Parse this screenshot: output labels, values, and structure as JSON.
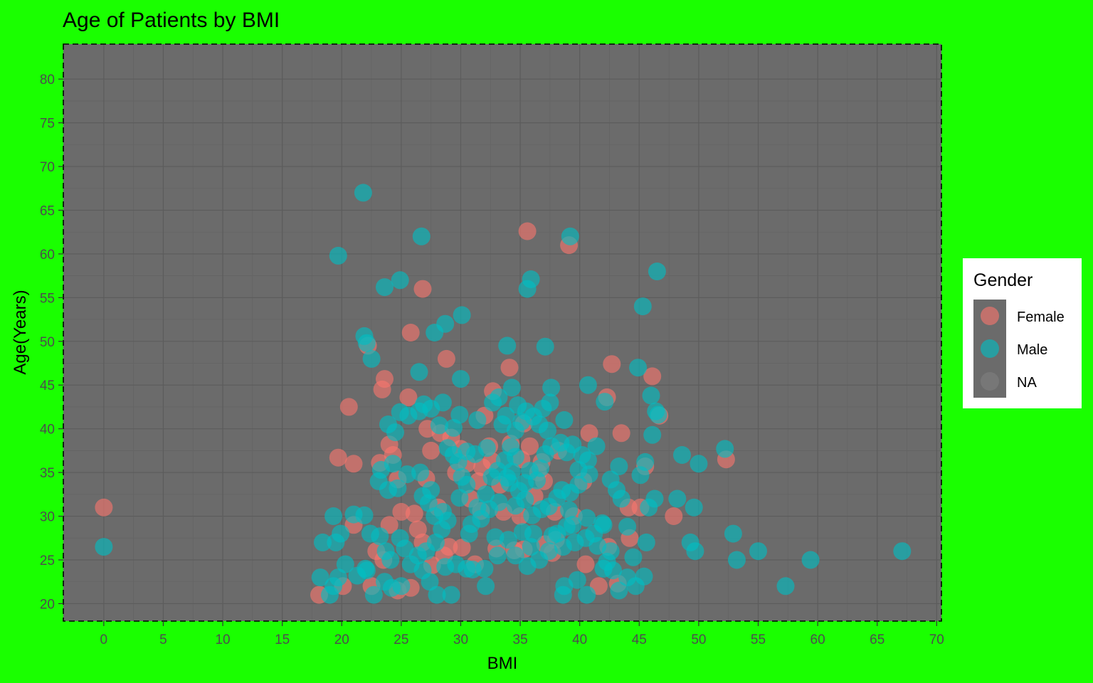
{
  "chart_data": {
    "type": "scatter",
    "title": "Age of Patients by BMI",
    "xlabel": "BMI",
    "ylabel": "Age(Years)",
    "xlim": [
      -3.4,
      70.4
    ],
    "ylim": [
      18,
      84
    ],
    "x_ticks": [
      0,
      5,
      10,
      15,
      20,
      25,
      30,
      35,
      40,
      45,
      50,
      55,
      60,
      65,
      70
    ],
    "y_ticks": [
      20,
      25,
      30,
      35,
      40,
      45,
      50,
      55,
      60,
      65,
      70,
      75,
      80
    ],
    "grid": true,
    "legend": {
      "title": "Gender",
      "position": "right",
      "entries": [
        "Female",
        "Male",
        "NA"
      ]
    },
    "colors": {
      "Female": "#f8766d",
      "Male": "#00bfc4",
      "NA": "#7f7f7f",
      "panel_background": "#6b6b6b",
      "plot_background": "#1aff00"
    },
    "series": [
      {
        "name": "Female",
        "points": [
          [
            0,
            31
          ],
          [
            35.6,
            62.6
          ],
          [
            39.1,
            61
          ],
          [
            26.8,
            56
          ],
          [
            25.8,
            51
          ],
          [
            28.8,
            48
          ],
          [
            34.1,
            47
          ],
          [
            42.7,
            47.4
          ],
          [
            46.1,
            46
          ],
          [
            23.6,
            45.7
          ],
          [
            23.4,
            44.5
          ],
          [
            25.6,
            43.6
          ],
          [
            32.7,
            44.3
          ],
          [
            42.3,
            43.6
          ],
          [
            20.6,
            42.5
          ],
          [
            22.2,
            49.5
          ],
          [
            43.5,
            39.5
          ],
          [
            40.8,
            39.5
          ],
          [
            45.5,
            35.7
          ],
          [
            46.7,
            41.5
          ],
          [
            52.3,
            36.5
          ],
          [
            19.7,
            36.7
          ],
          [
            21,
            36
          ],
          [
            44.1,
            31
          ],
          [
            47.9,
            30
          ],
          [
            37,
            34
          ],
          [
            36.5,
            35
          ],
          [
            35.1,
            36.5
          ],
          [
            35.8,
            38
          ],
          [
            32.4,
            38
          ],
          [
            31.5,
            34
          ],
          [
            30.5,
            36
          ],
          [
            29.2,
            39
          ],
          [
            27.5,
            37.5
          ],
          [
            27.1,
            34.3
          ],
          [
            26.1,
            30.3
          ],
          [
            25,
            30.5
          ],
          [
            23.2,
            36.1
          ],
          [
            24.3,
            37
          ],
          [
            22.9,
            26
          ],
          [
            23.5,
            25
          ],
          [
            24.7,
            21.5
          ],
          [
            25.8,
            21.8
          ],
          [
            27.6,
            24.4
          ],
          [
            29,
            26.5
          ],
          [
            30.1,
            26.4
          ],
          [
            31.2,
            24.5
          ],
          [
            33,
            26.3
          ],
          [
            34.5,
            26.1
          ],
          [
            35.3,
            26.2
          ],
          [
            37.1,
            26.8
          ],
          [
            38,
            27.3
          ],
          [
            40.5,
            24.5
          ],
          [
            41.6,
            22
          ],
          [
            43.2,
            22.3
          ],
          [
            44.2,
            27.5
          ],
          [
            28.6,
            25.5
          ],
          [
            26.4,
            28.5
          ],
          [
            24,
            29
          ],
          [
            21,
            29
          ],
          [
            20.1,
            22
          ],
          [
            18.1,
            21
          ],
          [
            22.5,
            22
          ],
          [
            28.1,
            31
          ],
          [
            31.7,
            30.6
          ],
          [
            33.6,
            30.5
          ],
          [
            35,
            30
          ],
          [
            36.2,
            32.3
          ],
          [
            37.9,
            30.5
          ],
          [
            39.5,
            30
          ],
          [
            40.3,
            34
          ],
          [
            38.2,
            37.5
          ],
          [
            34.2,
            38.3
          ],
          [
            31.8,
            35.6
          ],
          [
            29.6,
            35
          ],
          [
            27.2,
            40
          ],
          [
            24,
            38.2
          ],
          [
            30.8,
            32
          ],
          [
            33.3,
            33.6
          ],
          [
            36.8,
            36.2
          ],
          [
            35.3,
            40.6
          ],
          [
            32,
            41.5
          ],
          [
            28.3,
            39.5
          ],
          [
            24.7,
            34.2
          ],
          [
            26.8,
            27
          ],
          [
            37.7,
            25.8
          ],
          [
            42.4,
            26.5
          ],
          [
            45.1,
            31
          ],
          [
            30,
            37.7
          ],
          [
            32.6,
            36.3
          ]
        ]
      },
      {
        "name": "Male",
        "points": [
          [
            0,
            26.5
          ],
          [
            21.8,
            67
          ],
          [
            26.7,
            62
          ],
          [
            39.2,
            62
          ],
          [
            19.7,
            59.8
          ],
          [
            46.5,
            58
          ],
          [
            35.9,
            57.1
          ],
          [
            35.6,
            56
          ],
          [
            24.9,
            57
          ],
          [
            23.6,
            56.2
          ],
          [
            45.3,
            54
          ],
          [
            30.1,
            53
          ],
          [
            28.7,
            52
          ],
          [
            27.8,
            51
          ],
          [
            21.9,
            50.6
          ],
          [
            22.1,
            49.8
          ],
          [
            22.5,
            48
          ],
          [
            33.9,
            49.5
          ],
          [
            37.1,
            49.4
          ],
          [
            26.5,
            46.5
          ],
          [
            30,
            45.7
          ],
          [
            44.9,
            47
          ],
          [
            34.3,
            44.7
          ],
          [
            37.6,
            44.7
          ],
          [
            40.7,
            45
          ],
          [
            42.1,
            43.1
          ],
          [
            46,
            43.8
          ],
          [
            46.4,
            42
          ],
          [
            46.6,
            41.6
          ],
          [
            46.1,
            39.3
          ],
          [
            52.2,
            37.7
          ],
          [
            48.6,
            37
          ],
          [
            50,
            36
          ],
          [
            45.5,
            36.2
          ],
          [
            45.1,
            34.7
          ],
          [
            46.3,
            32
          ],
          [
            45.8,
            31
          ],
          [
            48.2,
            32
          ],
          [
            49.6,
            31
          ],
          [
            49.3,
            27
          ],
          [
            49.7,
            26
          ],
          [
            52.9,
            28
          ],
          [
            53.2,
            25
          ],
          [
            55,
            26
          ],
          [
            57.3,
            22
          ],
          [
            59.4,
            25
          ],
          [
            67.1,
            26
          ],
          [
            43.3,
            35.7
          ],
          [
            42.6,
            34.2
          ],
          [
            43.1,
            33
          ],
          [
            43.5,
            32
          ],
          [
            44,
            28.8
          ],
          [
            42,
            29
          ],
          [
            41.2,
            28
          ],
          [
            40.5,
            27.5
          ],
          [
            39.4,
            29
          ],
          [
            38.6,
            26.5
          ],
          [
            39.6,
            27
          ],
          [
            42.3,
            24.8
          ],
          [
            42,
            24
          ],
          [
            42.8,
            23.8
          ],
          [
            43.3,
            21.5
          ],
          [
            44,
            23
          ],
          [
            44.7,
            22
          ],
          [
            45.4,
            23.1
          ],
          [
            44.5,
            25.3
          ],
          [
            45.6,
            27
          ],
          [
            38.7,
            22
          ],
          [
            38.6,
            21
          ],
          [
            39.8,
            22.7
          ],
          [
            40.6,
            21
          ],
          [
            36.6,
            25
          ],
          [
            35.6,
            24.3
          ],
          [
            35.9,
            26.5
          ],
          [
            37.4,
            26
          ],
          [
            38.1,
            28
          ],
          [
            36.1,
            28
          ],
          [
            34.6,
            25.5
          ],
          [
            33.1,
            25.5
          ],
          [
            32,
            24
          ],
          [
            32.1,
            22
          ],
          [
            30.5,
            24
          ],
          [
            31,
            23.9
          ],
          [
            30.7,
            28
          ],
          [
            29.6,
            24.5
          ],
          [
            28,
            21
          ],
          [
            29.2,
            21
          ],
          [
            28.7,
            24.2
          ],
          [
            27.4,
            22.5
          ],
          [
            26.8,
            23.8
          ],
          [
            25.8,
            24.5
          ],
          [
            25,
            22
          ],
          [
            24.2,
            21.8
          ],
          [
            23.6,
            22.5
          ],
          [
            22.7,
            21
          ],
          [
            22.1,
            23.8
          ],
          [
            22,
            24
          ],
          [
            21.3,
            23.2
          ],
          [
            20.3,
            24.5
          ],
          [
            19.7,
            23
          ],
          [
            19.3,
            22
          ],
          [
            19,
            21
          ],
          [
            18.2,
            23
          ],
          [
            18.4,
            27
          ],
          [
            19.5,
            27
          ],
          [
            19.9,
            28
          ],
          [
            19.3,
            30
          ],
          [
            21,
            30.2
          ],
          [
            21.9,
            30.1
          ],
          [
            22.4,
            28
          ],
          [
            23.2,
            27.7
          ],
          [
            23.7,
            26
          ],
          [
            24.1,
            25
          ],
          [
            24.9,
            27.5
          ],
          [
            25.3,
            26.3
          ],
          [
            26.4,
            25.5
          ],
          [
            27.1,
            26
          ],
          [
            27.9,
            27
          ],
          [
            28.4,
            28.5
          ],
          [
            28.9,
            29.5
          ],
          [
            28.5,
            30.5
          ],
          [
            27.8,
            30
          ],
          [
            27.3,
            31.5
          ],
          [
            26.8,
            32.3
          ],
          [
            27.5,
            33
          ],
          [
            26.6,
            35
          ],
          [
            25.5,
            34.8
          ],
          [
            24.7,
            33.2
          ],
          [
            23.9,
            33
          ],
          [
            23.1,
            34
          ],
          [
            23.3,
            35.3
          ],
          [
            24.3,
            36
          ],
          [
            24.5,
            39.6
          ],
          [
            23.9,
            40.5
          ],
          [
            24.9,
            41.9
          ],
          [
            25.6,
            41.5
          ],
          [
            26.5,
            42
          ],
          [
            26.9,
            42.8
          ],
          [
            27.5,
            42.3
          ],
          [
            28.5,
            43
          ],
          [
            28.2,
            40.4
          ],
          [
            28.9,
            37.8
          ],
          [
            29.4,
            37
          ],
          [
            29.8,
            36.2
          ],
          [
            30.1,
            34.5
          ],
          [
            30.5,
            33.6
          ],
          [
            29.9,
            32.1
          ],
          [
            31.4,
            31
          ],
          [
            32.1,
            32.5
          ],
          [
            32.6,
            34.5
          ],
          [
            33.1,
            35.2
          ],
          [
            33.7,
            36.4
          ],
          [
            34.2,
            37.9
          ],
          [
            34.6,
            36.8
          ],
          [
            34.3,
            35.1
          ],
          [
            34.1,
            33.8
          ],
          [
            34.9,
            32.9
          ],
          [
            35.4,
            33.8
          ],
          [
            35.8,
            35.2
          ],
          [
            36.7,
            35.5
          ],
          [
            37.1,
            37.1
          ],
          [
            37.6,
            38
          ],
          [
            38.4,
            38.4
          ],
          [
            38.9,
            37.3
          ],
          [
            39.4,
            38.2
          ],
          [
            40.2,
            37
          ],
          [
            40.7,
            36.4
          ],
          [
            41.4,
            38
          ],
          [
            40.8,
            34.8
          ],
          [
            39.9,
            33.6
          ],
          [
            39.2,
            32.7
          ],
          [
            38.1,
            32.1
          ],
          [
            37.4,
            31.1
          ],
          [
            36.8,
            30.8
          ],
          [
            36,
            30.1
          ],
          [
            35.4,
            31.9
          ],
          [
            34.6,
            31.2
          ],
          [
            33.2,
            31.6
          ],
          [
            32.4,
            30.8
          ],
          [
            31.7,
            29.7
          ],
          [
            30.9,
            29.1
          ],
          [
            30.5,
            37.4
          ],
          [
            31.2,
            37.1
          ],
          [
            32.2,
            37.8
          ],
          [
            33.5,
            40.5
          ],
          [
            33.8,
            41.5
          ],
          [
            34.6,
            39.8
          ],
          [
            35.1,
            40.8
          ],
          [
            35.5,
            42
          ],
          [
            36.1,
            41.4
          ],
          [
            36.9,
            42.3
          ],
          [
            37.5,
            43
          ],
          [
            38.7,
            41
          ],
          [
            37.3,
            39.8
          ],
          [
            36.6,
            40.5
          ],
          [
            31.4,
            41
          ],
          [
            29.9,
            41.6
          ],
          [
            29.4,
            40.1
          ],
          [
            32.7,
            43
          ],
          [
            33.2,
            43.6
          ],
          [
            34.8,
            42.7
          ],
          [
            39.9,
            35.3
          ],
          [
            41.9,
            29.2
          ],
          [
            40.6,
            29.8
          ],
          [
            39.1,
            30.7
          ],
          [
            38.5,
            33
          ],
          [
            36.4,
            34.1
          ],
          [
            33.9,
            34.4
          ],
          [
            32.9,
            27.6
          ],
          [
            34,
            27.3
          ],
          [
            35.2,
            28.2
          ],
          [
            37.7,
            27.8
          ],
          [
            38.9,
            28.8
          ],
          [
            41.5,
            26.6
          ],
          [
            42.6,
            26
          ]
        ]
      }
    ]
  }
}
